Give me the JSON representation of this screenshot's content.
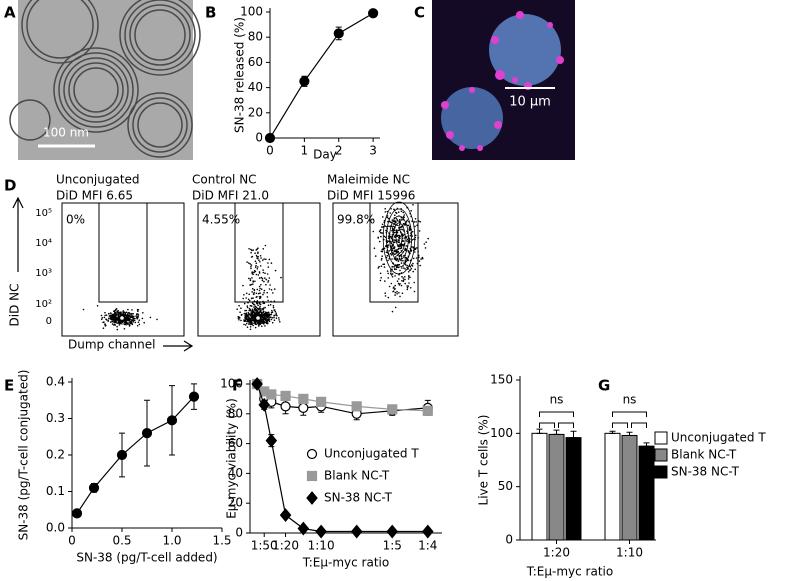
{
  "panel_labels": [
    "A",
    "B",
    "C",
    "D",
    "E",
    "F",
    "G"
  ],
  "images": [
    {
      "scale_bar": "100 nm"
    },
    {
      "scale_bar": "10 μm"
    }
  ],
  "flow": {
    "ylabel": "DiD NC",
    "xlabel": "Dump channel",
    "yticks": [
      "10⁵",
      "10⁴",
      "10³",
      "10²",
      "0"
    ],
    "panels": [
      {
        "title": [
          "Unconjugated",
          "DiD MFI 6.65"
        ],
        "gate_percent": "0%"
      },
      {
        "title": [
          "Control NC",
          "DiD MFI 21.0"
        ],
        "gate_percent": "4.55%"
      },
      {
        "title": [
          "Maleimide NC",
          "DiD MFI 15996"
        ],
        "gate_percent": "99.8%"
      }
    ]
  },
  "chart_data": [
    {
      "type": "line",
      "ylabel": "SN-38 released (%)",
      "xlabel": "Day",
      "x": [
        0,
        1,
        2,
        3
      ],
      "series": [
        {
          "color": "#000000",
          "marker": "circle",
          "values": [
            0,
            45,
            83,
            99
          ],
          "errors": [
            0,
            4,
            5,
            1
          ]
        }
      ],
      "xlim": [
        0,
        3.2
      ],
      "ylim": [
        0,
        100
      ],
      "xticks": [
        0,
        1,
        2,
        3
      ],
      "yticks": [
        0,
        20,
        40,
        60,
        80,
        100
      ]
    },
    {
      "type": "line",
      "ylabel": "SN-38 (pg/T-cell conjugated)",
      "xlabel": "SN-38 (pg/T-cell added)",
      "x": [
        0.05,
        0.22,
        0.5,
        0.75,
        1.0,
        1.22
      ],
      "series": [
        {
          "color": "#000000",
          "marker": "circle",
          "values": [
            0.04,
            0.11,
            0.2,
            0.26,
            0.295,
            0.36
          ],
          "errors": [
            0,
            0.012,
            0.06,
            0.09,
            0.095,
            0.035
          ]
        }
      ],
      "xlim": [
        0,
        1.5
      ],
      "ylim": [
        0,
        0.4
      ],
      "xticks": [
        0,
        0.5,
        {
          "value": 1,
          "label": "1.0"
        },
        1.5
      ],
      "yticks": [
        {
          "value": 0,
          "label": "0.0"
        },
        0.1,
        0.2,
        0.3,
        0.4
      ]
    },
    {
      "type": "line",
      "ylabel": "Eμ-myc viability (%)",
      "xlabel": "T:Eμ-myc ratio",
      "x": [
        0.01,
        0.02,
        0.03,
        0.05,
        0.075,
        0.1,
        0.15,
        0.2,
        0.25
      ],
      "series": [
        {
          "name": "Unconjugated T",
          "color": "#ffffff",
          "edgecolor": "#000000",
          "marker": "circle",
          "values": [
            100,
            90,
            88,
            85,
            84,
            85,
            80,
            82,
            84
          ],
          "errors": [
            0,
            3,
            4,
            5,
            5,
            4,
            4,
            3,
            5
          ]
        },
        {
          "name": "Blank NC-T",
          "color": "#999999",
          "marker": "square",
          "values": [
            100,
            95,
            93,
            92,
            90,
            88,
            85,
            83,
            82
          ],
          "errors": [
            0,
            2,
            2,
            3,
            2,
            2,
            2,
            2,
            2
          ]
        },
        {
          "name": "SN-38 NC-T",
          "color": "#000000",
          "marker": "diamond",
          "values": [
            100,
            86,
            62,
            12,
            3,
            1,
            1,
            1,
            1
          ],
          "errors": [
            0,
            3,
            4,
            2,
            1,
            0,
            0,
            0,
            0
          ]
        }
      ],
      "xlim": [
        0,
        0.27
      ],
      "ylim": [
        0,
        100
      ],
      "xticks": [
        {
          "value": 0.02,
          "label": "1:50"
        },
        {
          "value": 0.05,
          "label": "1:20"
        },
        {
          "value": 0.1,
          "label": "1:10"
        },
        {
          "value": 0.2,
          "label": "1:5"
        },
        {
          "value": 0.25,
          "label": "1:4"
        }
      ],
      "yticks": [
        0,
        20,
        40,
        60,
        80,
        100
      ],
      "legend": "inside"
    },
    {
      "type": "bar",
      "ylabel": "Live T cells (%)",
      "xlabel": "T:Eμ-myc ratio",
      "categories": [
        "1:20",
        "1:10"
      ],
      "series": [
        {
          "name": "Unconjugated T",
          "color": "#ffffff",
          "values": [
            100,
            100
          ],
          "errors": [
            4,
            2
          ]
        },
        {
          "name": "Blank NC-T",
          "color": "#888888",
          "values": [
            99,
            98
          ],
          "errors": [
            4,
            3
          ]
        },
        {
          "name": "SN-38 NC-T",
          "color": "#000000",
          "values": [
            96,
            88
          ],
          "errors": [
            6,
            3
          ]
        }
      ],
      "ylim": [
        0,
        150
      ],
      "yticks": [
        0,
        50,
        100,
        150
      ],
      "annotations": [
        "ns",
        "ns"
      ],
      "legend": "right"
    }
  ]
}
